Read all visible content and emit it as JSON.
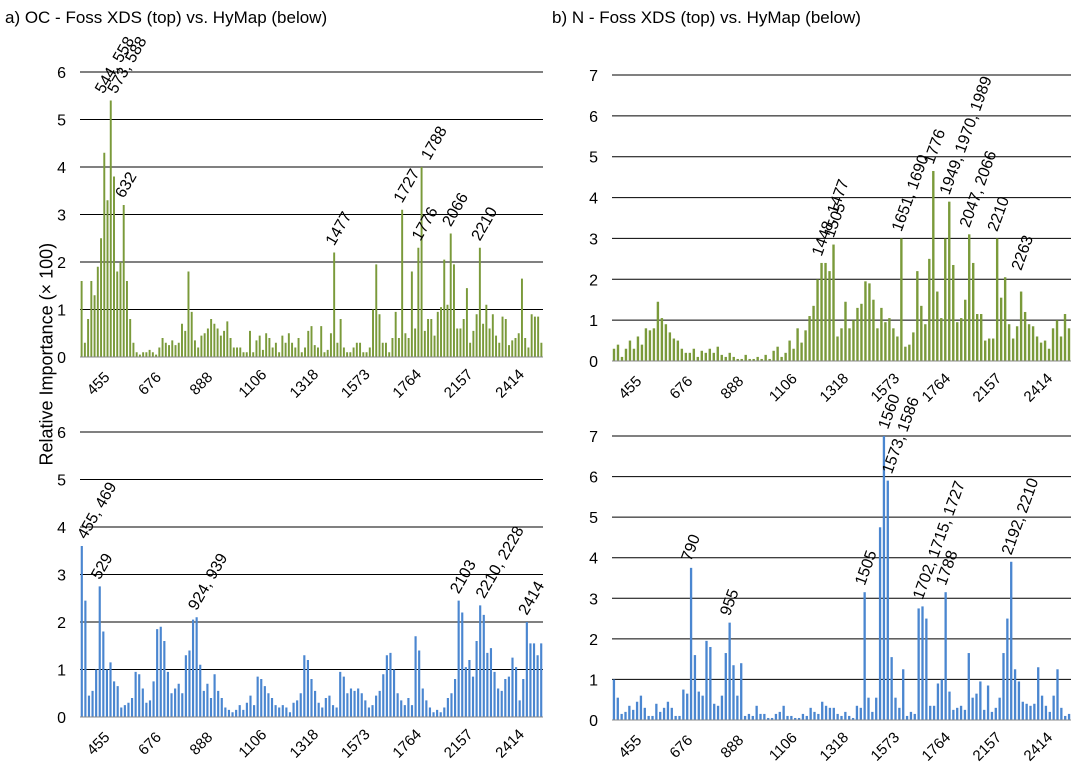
{
  "figure": {
    "ylabel": "Relative Importance (× 100)",
    "panel_a_title": "a)  OC - Foss XDS (top) vs. HyMap (below)",
    "panel_b_title": "b)  N - Foss XDS (top) vs. HyMap (below)"
  },
  "colors": {
    "foss": "#7a9a3a",
    "hymap": "#4a86d0",
    "grid": "#000000"
  },
  "chart_data": [
    {
      "type": "bar",
      "panel": "a-top",
      "title": "",
      "xlabel": "",
      "ylabel": "Relative Importance (× 100)",
      "series_name": "",
      "color": "#7a9a3a",
      "ylim": [
        0,
        6
      ],
      "yticks": [
        0,
        1,
        2,
        3,
        4,
        5,
        6
      ],
      "x_tick_labels": [
        "455",
        "676",
        "888",
        "1106",
        "1318",
        "1573",
        "1764",
        "2157",
        "2414"
      ],
      "values": [
        1.6,
        0.3,
        0.8,
        1.6,
        1.3,
        1.9,
        2.5,
        4.3,
        3.3,
        5.4,
        3.8,
        1.8,
        2.0,
        3.2,
        1.6,
        0.8,
        0.3,
        0.1,
        0.05,
        0.1,
        0.1,
        0.15,
        0.1,
        0.05,
        0.2,
        0.4,
        0.3,
        0.25,
        0.35,
        0.25,
        0.3,
        0.7,
        0.55,
        1.8,
        0.95,
        0.35,
        0.2,
        0.45,
        0.5,
        0.6,
        0.8,
        0.7,
        0.6,
        0.45,
        0.55,
        0.75,
        0.4,
        0.2,
        0.2,
        0.2,
        0.1,
        0.1,
        0.55,
        0.1,
        0.35,
        0.45,
        0.15,
        0.5,
        0.4,
        0.2,
        0.3,
        0.1,
        0.45,
        0.3,
        0.5,
        0.3,
        0.2,
        0.4,
        0.1,
        0.2,
        0.55,
        0.65,
        0.25,
        0.2,
        0.65,
        0.1,
        0.15,
        0.5,
        2.2,
        0.3,
        0.8,
        0.2,
        0.1,
        0.1,
        0.2,
        0.3,
        0.3,
        0.1,
        0.1,
        0.2,
        1.0,
        1.95,
        0.9,
        0.3,
        0.3,
        0.1,
        0.4,
        0.95,
        0.4,
        3.1,
        0.5,
        0.4,
        1.8,
        0.6,
        2.3,
        4.0,
        0.55,
        0.8,
        0.8,
        0.45,
        0.95,
        1.05,
        2.05,
        1.1,
        2.6,
        1.95,
        0.6,
        0.6,
        0.8,
        1.45,
        0.3,
        0.55,
        0.9,
        2.3,
        0.7,
        1.1,
        0.6,
        0.9,
        0.45,
        0.3,
        0.85,
        0.8,
        0.25,
        0.35,
        0.4,
        0.5,
        1.65,
        0.4,
        0.2,
        0.9,
        0.85,
        0.85,
        0.3
      ],
      "annotations": [
        {
          "text": "544, 558",
          "at": 5.4
        },
        {
          "text": "573, 588",
          "at": 5.4
        },
        {
          "text": "632",
          "at": 3.2
        },
        {
          "text": "1477",
          "at": 2.2
        },
        {
          "text": "1727",
          "at": 3.1
        },
        {
          "text": "1788",
          "at": 4.0
        },
        {
          "text": "1776",
          "at": 2.3
        },
        {
          "text": "2066",
          "at": 2.6
        },
        {
          "text": "2210",
          "at": 2.3
        }
      ]
    },
    {
      "type": "bar",
      "panel": "a-bottom",
      "title": "",
      "xlabel": "",
      "ylabel": "Relative Importance (× 100)",
      "series_name": "",
      "color": "#4a86d0",
      "ylim": [
        0,
        6
      ],
      "yticks": [
        0,
        1,
        2,
        3,
        4,
        5,
        6
      ],
      "x_tick_labels": [
        "455",
        "676",
        "888",
        "1106",
        "1318",
        "1573",
        "1764",
        "2157",
        "2414"
      ],
      "values": [
        3.6,
        2.45,
        0.45,
        0.55,
        1.0,
        2.75,
        1.8,
        1.0,
        1.15,
        0.75,
        0.65,
        0.2,
        0.25,
        0.3,
        0.4,
        0.95,
        0.9,
        0.6,
        0.3,
        0.35,
        0.75,
        1.85,
        1.9,
        1.6,
        0.95,
        0.5,
        0.6,
        0.7,
        0.5,
        1.3,
        1.4,
        2.05,
        2.1,
        1.1,
        0.55,
        0.7,
        0.4,
        0.9,
        0.55,
        0.4,
        0.2,
        0.15,
        0.1,
        0.15,
        0.25,
        0.15,
        0.3,
        0.45,
        0.25,
        0.85,
        0.8,
        0.65,
        0.5,
        0.4,
        0.25,
        0.2,
        0.25,
        0.2,
        0.1,
        0.3,
        0.35,
        0.5,
        1.3,
        1.2,
        0.8,
        0.55,
        0.3,
        0.2,
        0.4,
        0.45,
        0.25,
        0.2,
        0.95,
        0.85,
        0.5,
        0.6,
        0.55,
        0.6,
        0.5,
        0.35,
        0.2,
        0.25,
        0.45,
        0.55,
        0.9,
        1.3,
        1.35,
        1.0,
        0.5,
        0.35,
        0.25,
        0.4,
        0.25,
        1.7,
        1.4,
        0.6,
        0.35,
        0.2,
        0.1,
        0.15,
        0.1,
        0.2,
        0.4,
        0.5,
        0.8,
        2.45,
        2.2,
        1.05,
        1.2,
        0.85,
        1.6,
        2.35,
        2.15,
        1.35,
        1.45,
        0.95,
        0.6,
        0.55,
        0.8,
        0.85,
        1.25,
        1.05,
        0.35,
        0.8,
        2.0,
        1.55,
        1.55,
        1.3,
        1.55
      ],
      "annotations": [
        {
          "text": "455, 469",
          "at": 3.6
        },
        {
          "text": "529",
          "at": 2.75
        },
        {
          "text": "924, 939",
          "at": 2.1
        },
        {
          "text": "2103",
          "at": 2.45
        },
        {
          "text": "2210, 2228",
          "at": 2.35
        },
        {
          "text": "2414",
          "at": 2.0
        }
      ]
    },
    {
      "type": "bar",
      "panel": "b-top",
      "title": "",
      "xlabel": "",
      "ylabel": "",
      "series_name": "",
      "color": "#7a9a3a",
      "ylim": [
        0,
        7
      ],
      "yticks": [
        0,
        1,
        2,
        3,
        4,
        5,
        6,
        7
      ],
      "x_tick_labels": [
        "455",
        "676",
        "888",
        "1106",
        "1318",
        "1573",
        "1764",
        "2157",
        "2414"
      ],
      "values": [
        0.3,
        0.4,
        0.1,
        0.3,
        0.5,
        0.3,
        0.6,
        0.4,
        0.8,
        0.75,
        0.8,
        1.45,
        1.05,
        0.9,
        0.7,
        0.55,
        0.5,
        0.3,
        0.2,
        0.2,
        0.3,
        0.1,
        0.25,
        0.2,
        0.3,
        0.2,
        0.35,
        0.15,
        0.1,
        0.2,
        0.1,
        0.05,
        0.05,
        0.15,
        0.05,
        0.05,
        0.1,
        0.05,
        0.15,
        0.05,
        0.25,
        0.35,
        0.1,
        0.2,
        0.5,
        0.3,
        0.8,
        0.45,
        0.75,
        1.1,
        1.35,
        2.0,
        2.4,
        2.4,
        2.2,
        2.85,
        0.6,
        0.8,
        1.45,
        0.8,
        1.0,
        1.3,
        1.4,
        1.95,
        1.9,
        1.5,
        0.8,
        1.3,
        0.95,
        1.05,
        0.8,
        0.6,
        3.0,
        0.35,
        0.4,
        0.7,
        2.2,
        1.35,
        0.9,
        2.5,
        4.65,
        1.7,
        1.05,
        3.0,
        3.9,
        2.35,
        0.95,
        1.05,
        1.5,
        3.1,
        2.4,
        1.15,
        1.15,
        0.5,
        0.55,
        0.55,
        3.0,
        1.55,
        2.05,
        0.9,
        0.55,
        0.85,
        1.7,
        1.2,
        0.9,
        0.85,
        0.6,
        0.45,
        0.5,
        0.3,
        0.8,
        1.0,
        0.6,
        1.15,
        0.8
      ],
      "annotations": [
        {
          "text": "1448, 1477",
          "at": 2.4
        },
        {
          "text": "1505",
          "at": 2.85
        },
        {
          "text": "1651, 1690",
          "at": 3.0
        },
        {
          "text": "1776",
          "at": 4.65
        },
        {
          "text": "1949, 1970, 1989",
          "at": 3.9
        },
        {
          "text": "2047, 2066",
          "at": 3.1
        },
        {
          "text": "2210",
          "at": 3.0
        },
        {
          "text": "2263",
          "at": 2.05
        }
      ]
    },
    {
      "type": "bar",
      "panel": "b-bottom",
      "title": "",
      "xlabel": "",
      "ylabel": "",
      "series_name": "",
      "color": "#4a86d0",
      "ylim": [
        0,
        7
      ],
      "yticks": [
        0,
        1,
        2,
        3,
        4,
        5,
        6,
        7
      ],
      "x_tick_labels": [
        "455",
        "676",
        "888",
        "1106",
        "1318",
        "1573",
        "1764",
        "2157",
        "2414"
      ],
      "values": [
        1.0,
        0.55,
        0.15,
        0.2,
        0.35,
        0.25,
        0.45,
        0.6,
        0.3,
        0.1,
        0.1,
        0.4,
        0.2,
        0.3,
        0.45,
        0.3,
        0.1,
        0.1,
        0.75,
        0.65,
        3.75,
        1.6,
        0.7,
        0.6,
        1.95,
        1.8,
        0.4,
        0.35,
        0.6,
        1.65,
        2.4,
        1.35,
        0.6,
        1.4,
        0.1,
        0.15,
        0.1,
        0.35,
        0.15,
        0.15,
        0.05,
        0.05,
        0.15,
        0.2,
        0.35,
        0.1,
        0.1,
        0.05,
        0.05,
        0.15,
        0.1,
        0.3,
        0.2,
        0.15,
        0.45,
        0.35,
        0.3,
        0.3,
        0.15,
        0.1,
        0.2,
        0.1,
        0.05,
        0.35,
        0.3,
        3.15,
        0.55,
        0.2,
        0.55,
        4.75,
        7.0,
        5.9,
        1.55,
        0.55,
        0.3,
        1.25,
        0.1,
        0.2,
        0.15,
        2.75,
        2.8,
        2.5,
        0.35,
        0.35,
        0.9,
        1.0,
        3.15,
        0.7,
        0.25,
        0.3,
        0.35,
        0.25,
        1.65,
        0.55,
        0.65,
        0.95,
        0.25,
        0.85,
        0.2,
        0.3,
        0.55,
        1.65,
        2.5,
        3.9,
        1.25,
        0.95,
        0.45,
        0.4,
        0.35,
        0.4,
        1.3,
        0.6,
        0.35,
        0.2,
        0.6,
        1.25,
        0.3,
        0.1,
        0.15
      ],
      "annotations": [
        {
          "text": "790",
          "at": 3.75
        },
        {
          "text": "955",
          "at": 2.4
        },
        {
          "text": "1505",
          "at": 3.15
        },
        {
          "text": "1560",
          "at": 7.0
        },
        {
          "text": "1573, 1586",
          "at": 5.9
        },
        {
          "text": "1702, 1715, 1727",
          "at": 2.8
        },
        {
          "text": "1788",
          "at": 3.15
        },
        {
          "text": "2192, 2210",
          "at": 3.9
        }
      ]
    }
  ]
}
